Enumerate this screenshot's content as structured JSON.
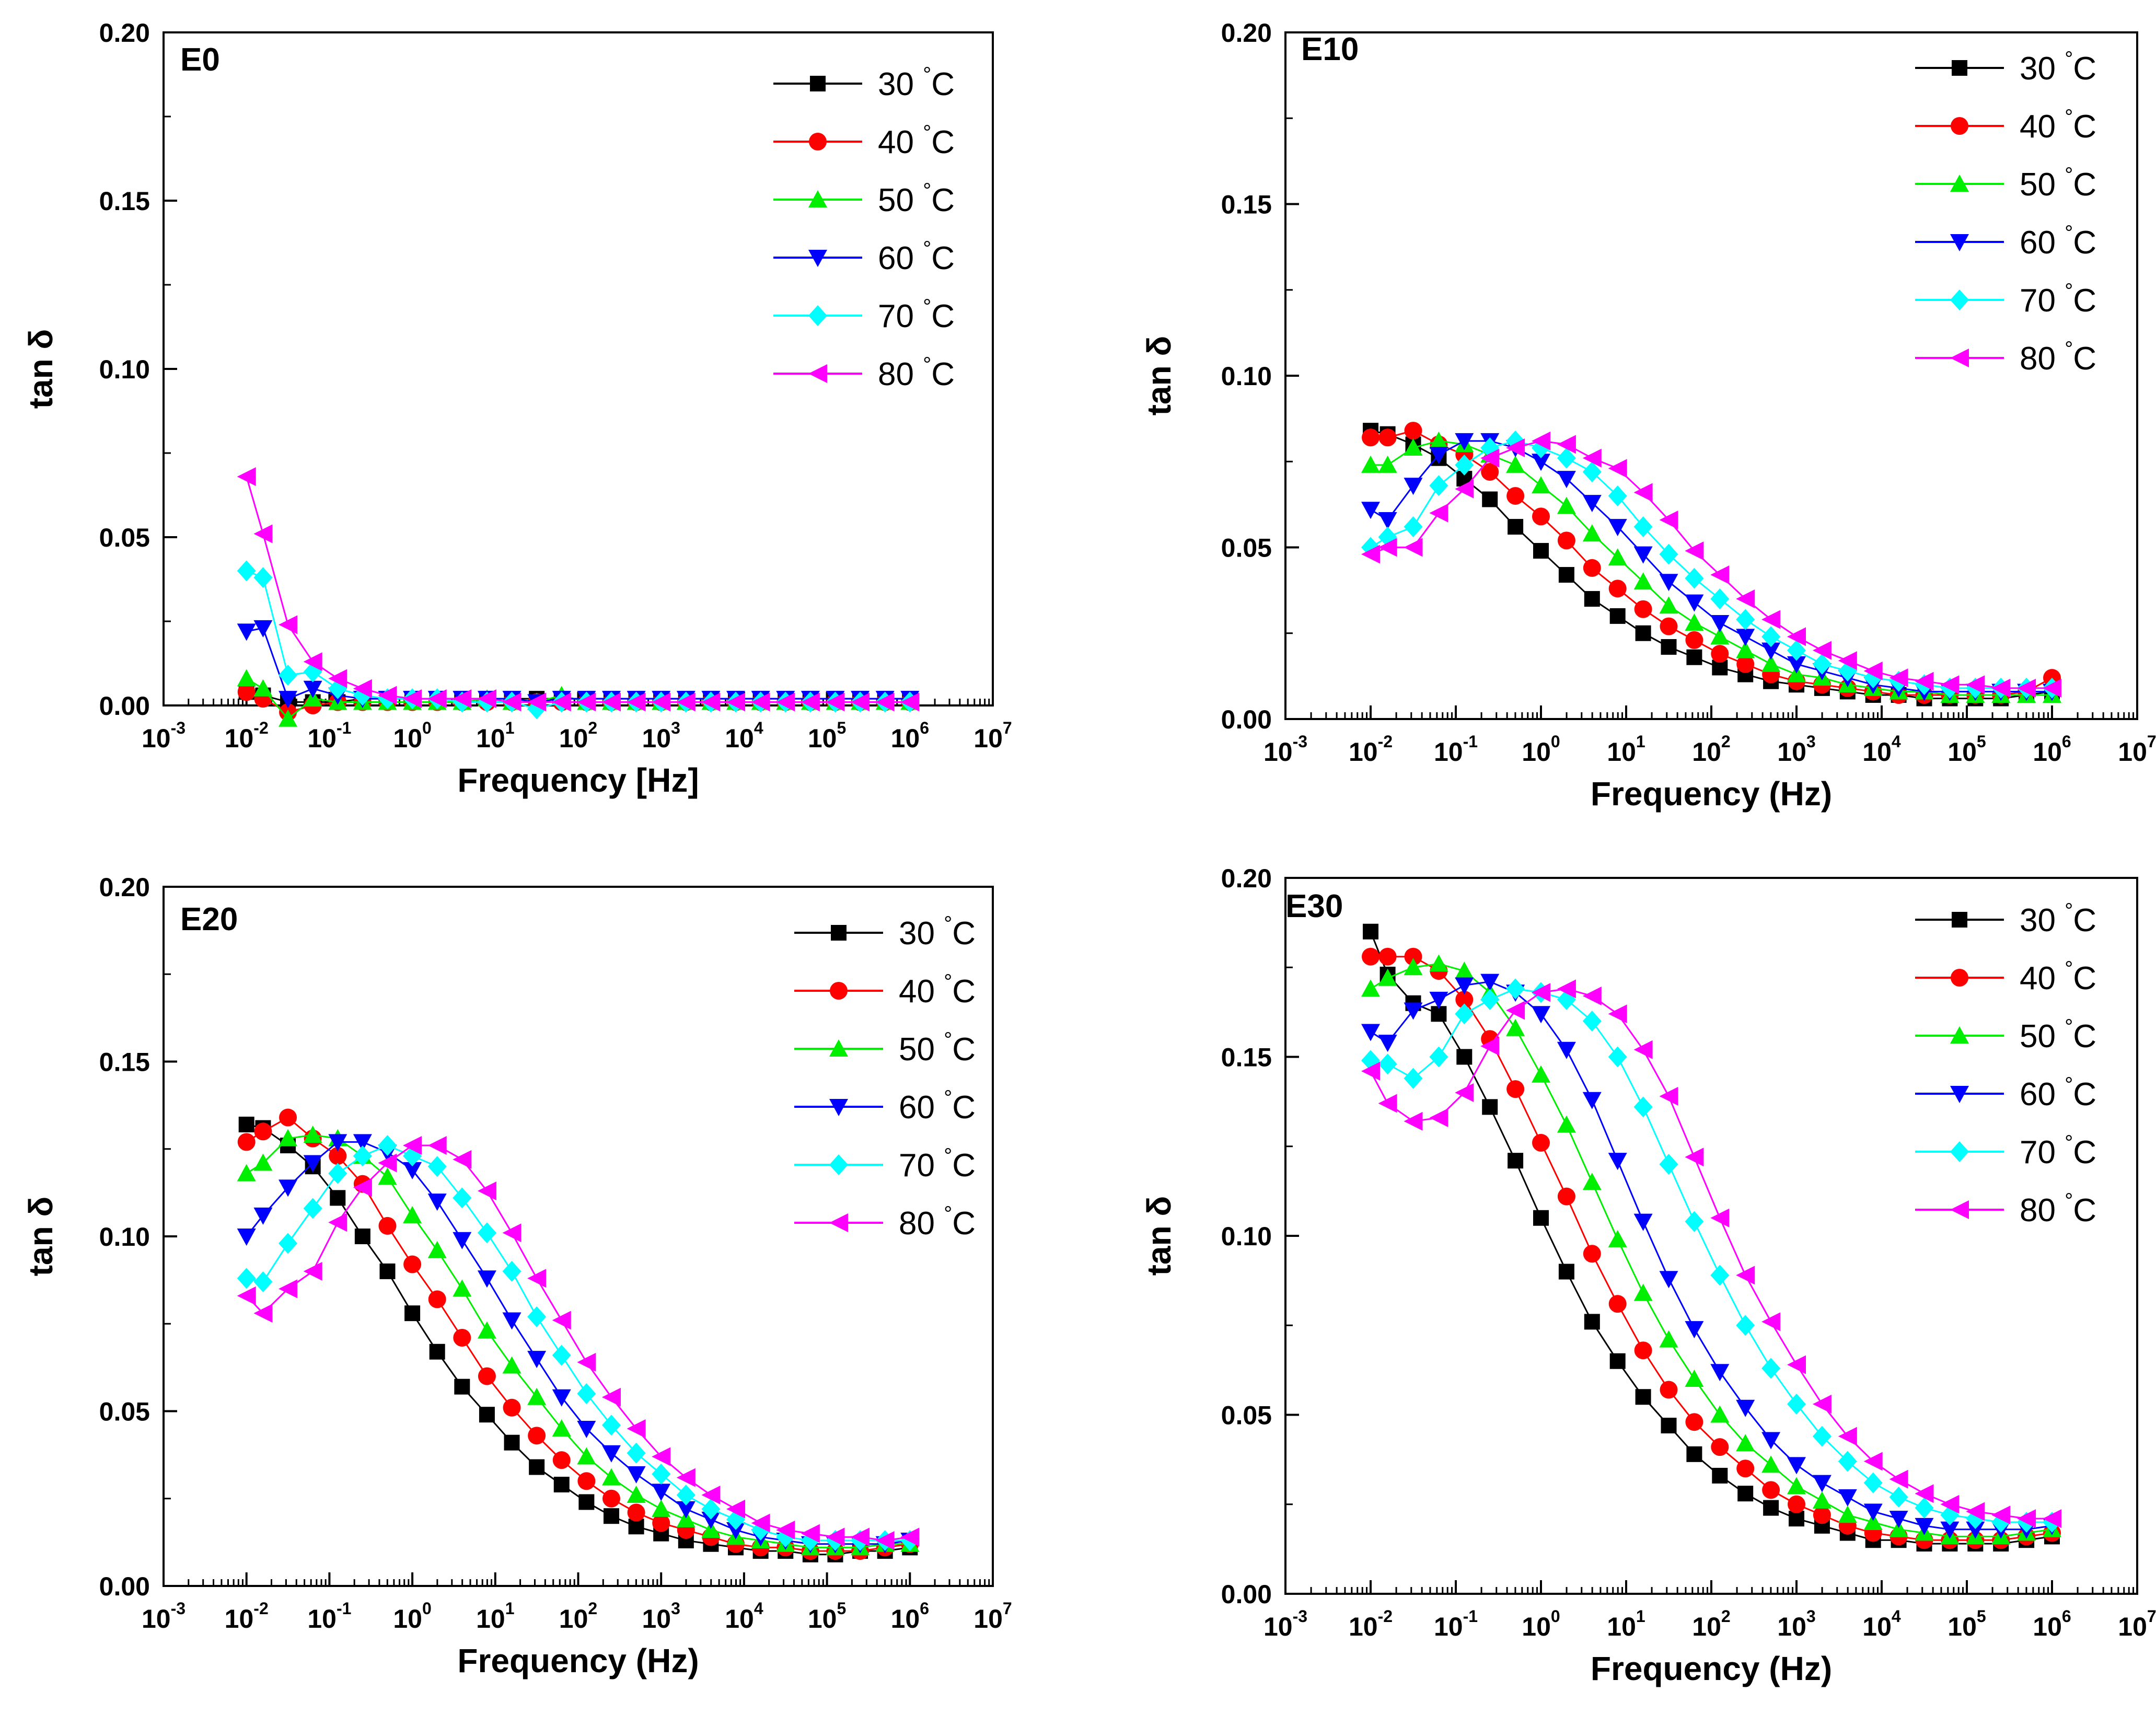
{
  "colors": {
    "30 °C": "#000000",
    "40 °C": "#ff0000",
    "50 °C": "#00ee00",
    "60 °C": "#0000ff",
    "70 °C": "#00ffff",
    "80 °C": "#ff00ff"
  },
  "markers": {
    "30 °C": "square",
    "40 °C": "circle",
    "50 °C": "triangle-up",
    "60 °C": "triangle-down",
    "70 °C": "diamond",
    "80 °C": "triangle-left"
  },
  "chart_data": [
    {
      "type": "line",
      "title": "E0",
      "xlabel": "Frequency [Hz]",
      "ylabel": "tan δ",
      "xscale": "log",
      "xlim_exp": [
        -3,
        7
      ],
      "xtick_exps": [
        -3,
        -2,
        -1,
        0,
        1,
        2,
        3,
        4,
        5,
        6,
        7
      ],
      "ylim": [
        0,
        0.2
      ],
      "yticks": [
        "0.00",
        "0.05",
        "0.10",
        "0.15",
        "0.20"
      ],
      "legend_position": "top-right",
      "x_log10": [
        -2,
        -1.8,
        -1.5,
        -1.2,
        -0.9,
        -0.6,
        -0.3,
        0,
        0.3,
        0.6,
        0.9,
        1.2,
        1.5,
        1.8,
        2.1,
        2.4,
        2.7,
        3,
        3.3,
        3.6,
        3.9,
        4.2,
        4.5,
        4.8,
        5.1,
        5.4,
        5.7,
        6
      ],
      "series": [
        {
          "name": "30 °C",
          "values": [
            0.004,
            0.003,
            0.001,
            0.001,
            0.001,
            0.002,
            0.002,
            0.002,
            0.002,
            0.002,
            0.002,
            0.002,
            0.002,
            0.002,
            0.002,
            0.002,
            0.002,
            0.002,
            0.002,
            0.002,
            0.002,
            0.002,
            0.002,
            0.002,
            0.002,
            0.002,
            0.002,
            0.002
          ]
        },
        {
          "name": "40 °C",
          "values": [
            0.004,
            0.002,
            -0.002,
            0.0,
            0.001,
            0.001,
            0.001,
            0.001,
            0.001,
            0.001,
            0.001,
            0.001,
            0.001,
            0.001,
            0.001,
            0.001,
            0.001,
            0.001,
            0.001,
            0.001,
            0.001,
            0.001,
            0.001,
            0.001,
            0.001,
            0.001,
            0.001,
            0.001
          ]
        },
        {
          "name": "50 °C",
          "values": [
            0.008,
            0.005,
            -0.004,
            0.002,
            0.001,
            0.001,
            0.001,
            0.001,
            0.001,
            0.001,
            0.002,
            0.001,
            0.001,
            0.003,
            0.001,
            0.001,
            0.001,
            0.001,
            0.001,
            0.001,
            0.001,
            0.001,
            0.001,
            0.001,
            0.001,
            0.001,
            0.001,
            0.001
          ]
        },
        {
          "name": "60 °C",
          "values": [
            0.022,
            0.023,
            0.002,
            0.005,
            0.003,
            0.002,
            0.002,
            0.002,
            0.002,
            0.002,
            0.002,
            0.002,
            0.001,
            0.002,
            0.002,
            0.002,
            0.002,
            0.002,
            0.002,
            0.002,
            0.002,
            0.002,
            0.002,
            0.002,
            0.002,
            0.002,
            0.002,
            0.002
          ]
        },
        {
          "name": "70 °C",
          "values": [
            0.04,
            0.038,
            0.009,
            0.01,
            0.005,
            0.003,
            0.002,
            0.002,
            0.002,
            0.001,
            0.001,
            0.001,
            -0.001,
            0.001,
            0.001,
            0.001,
            0.001,
            0.001,
            0.001,
            0.001,
            0.001,
            0.001,
            0.001,
            0.001,
            0.001,
            0.001,
            0.001,
            0.001
          ]
        },
        {
          "name": "80 °C",
          "values": [
            0.068,
            0.051,
            0.024,
            0.013,
            0.008,
            0.005,
            0.003,
            0.002,
            0.002,
            0.002,
            0.002,
            0.001,
            0.001,
            0.001,
            0.001,
            0.001,
            0.001,
            0.001,
            0.001,
            0.001,
            0.001,
            0.001,
            0.001,
            0.001,
            0.001,
            0.001,
            0.001,
            0.001
          ]
        }
      ]
    },
    {
      "type": "line",
      "title": "E10",
      "xlabel": "Frequency (Hz)",
      "ylabel": "tan δ",
      "xscale": "log",
      "xlim_exp": [
        -3,
        7
      ],
      "xtick_exps": [
        -3,
        -2,
        -1,
        0,
        1,
        2,
        3,
        4,
        5,
        6,
        7
      ],
      "ylim": [
        0,
        0.2
      ],
      "yticks": [
        "0.00",
        "0.05",
        "0.10",
        "0.15",
        "0.20"
      ],
      "legend_position": "top-right",
      "x_log10": [
        -2,
        -1.8,
        -1.5,
        -1.2,
        -0.9,
        -0.6,
        -0.3,
        0,
        0.3,
        0.6,
        0.9,
        1.2,
        1.5,
        1.8,
        2.1,
        2.4,
        2.7,
        3,
        3.3,
        3.6,
        3.9,
        4.2,
        4.5,
        4.8,
        5.1,
        5.4,
        5.7,
        6
      ],
      "series": [
        {
          "name": "30 °C",
          "values": [
            0.084,
            0.083,
            0.08,
            0.076,
            0.07,
            0.064,
            0.056,
            0.049,
            0.042,
            0.035,
            0.03,
            0.025,
            0.021,
            0.018,
            0.015,
            0.013,
            0.011,
            0.01,
            0.009,
            0.008,
            0.007,
            0.007,
            0.006,
            0.006,
            0.006,
            0.006,
            0.007,
            0.008
          ]
        },
        {
          "name": "40 °C",
          "values": [
            0.082,
            0.082,
            0.084,
            0.08,
            0.077,
            0.072,
            0.065,
            0.059,
            0.052,
            0.044,
            0.038,
            0.032,
            0.027,
            0.023,
            0.019,
            0.016,
            0.013,
            0.011,
            0.01,
            0.009,
            0.008,
            0.007,
            0.007,
            0.007,
            0.007,
            0.007,
            0.008,
            0.012
          ]
        },
        {
          "name": "50 °C",
          "values": [
            0.074,
            0.074,
            0.079,
            0.081,
            0.08,
            0.077,
            0.074,
            0.068,
            0.062,
            0.054,
            0.047,
            0.04,
            0.033,
            0.028,
            0.024,
            0.02,
            0.016,
            0.013,
            0.012,
            0.01,
            0.009,
            0.008,
            0.008,
            0.007,
            0.007,
            0.007,
            0.007,
            0.007
          ]
        },
        {
          "name": "60 °C",
          "values": [
            0.061,
            0.058,
            0.068,
            0.077,
            0.081,
            0.081,
            0.079,
            0.075,
            0.07,
            0.063,
            0.056,
            0.048,
            0.04,
            0.034,
            0.028,
            0.024,
            0.02,
            0.016,
            0.014,
            0.012,
            0.01,
            0.009,
            0.008,
            0.008,
            0.008,
            0.008,
            0.008,
            0.008
          ]
        },
        {
          "name": "70 °C",
          "values": [
            0.05,
            0.053,
            0.056,
            0.068,
            0.074,
            0.079,
            0.081,
            0.079,
            0.076,
            0.072,
            0.065,
            0.056,
            0.048,
            0.041,
            0.035,
            0.029,
            0.024,
            0.02,
            0.016,
            0.014,
            0.012,
            0.011,
            0.01,
            0.009,
            0.009,
            0.009,
            0.009,
            0.009
          ]
        },
        {
          "name": "80 °C",
          "values": [
            0.048,
            0.05,
            0.05,
            0.06,
            0.067,
            0.076,
            0.079,
            0.081,
            0.08,
            0.076,
            0.073,
            0.066,
            0.058,
            0.049,
            0.042,
            0.035,
            0.029,
            0.024,
            0.02,
            0.017,
            0.014,
            0.012,
            0.011,
            0.01,
            0.01,
            0.009,
            0.009,
            0.009
          ]
        }
      ]
    },
    {
      "type": "line",
      "title": "E20",
      "xlabel": "Frequency (Hz)",
      "ylabel": "tan δ",
      "xscale": "log",
      "xlim_exp": [
        -3,
        7
      ],
      "xtick_exps": [
        -3,
        -2,
        -1,
        0,
        1,
        2,
        3,
        4,
        5,
        6,
        7
      ],
      "ylim": [
        0,
        0.2
      ],
      "yticks": [
        "0.00",
        "0.05",
        "0.10",
        "0.15",
        "0.20"
      ],
      "legend_position": "top-right",
      "x_log10": [
        -2,
        -1.8,
        -1.5,
        -1.2,
        -0.9,
        -0.6,
        -0.3,
        0,
        0.3,
        0.6,
        0.9,
        1.2,
        1.5,
        1.8,
        2.1,
        2.4,
        2.7,
        3,
        3.3,
        3.6,
        3.9,
        4.2,
        4.5,
        4.8,
        5.1,
        5.4,
        5.7,
        6
      ],
      "series": [
        {
          "name": "30 °C",
          "values": [
            0.132,
            0.131,
            0.126,
            0.12,
            0.111,
            0.1,
            0.09,
            0.078,
            0.067,
            0.057,
            0.049,
            0.041,
            0.034,
            0.029,
            0.024,
            0.02,
            0.017,
            0.015,
            0.013,
            0.012,
            0.011,
            0.01,
            0.01,
            0.009,
            0.009,
            0.01,
            0.01,
            0.011
          ]
        },
        {
          "name": "40 °C",
          "values": [
            0.127,
            0.13,
            0.134,
            0.128,
            0.123,
            0.115,
            0.103,
            0.092,
            0.082,
            0.071,
            0.06,
            0.051,
            0.043,
            0.036,
            0.03,
            0.025,
            0.021,
            0.018,
            0.016,
            0.014,
            0.012,
            0.011,
            0.011,
            0.01,
            0.01,
            0.01,
            0.011,
            0.012
          ]
        },
        {
          "name": "50 °C",
          "values": [
            0.118,
            0.121,
            0.128,
            0.129,
            0.128,
            0.123,
            0.117,
            0.106,
            0.096,
            0.085,
            0.073,
            0.063,
            0.054,
            0.045,
            0.037,
            0.031,
            0.026,
            0.022,
            0.019,
            0.016,
            0.014,
            0.013,
            0.012,
            0.011,
            0.011,
            0.011,
            0.012,
            0.012
          ]
        },
        {
          "name": "60 °C",
          "values": [
            0.1,
            0.106,
            0.114,
            0.121,
            0.127,
            0.127,
            0.124,
            0.119,
            0.11,
            0.099,
            0.088,
            0.076,
            0.065,
            0.054,
            0.045,
            0.038,
            0.032,
            0.027,
            0.022,
            0.019,
            0.016,
            0.014,
            0.013,
            0.012,
            0.012,
            0.012,
            0.012,
            0.013
          ]
        },
        {
          "name": "70 °C",
          "values": [
            0.088,
            0.087,
            0.098,
            0.108,
            0.118,
            0.123,
            0.126,
            0.123,
            0.12,
            0.111,
            0.101,
            0.09,
            0.077,
            0.066,
            0.055,
            0.046,
            0.038,
            0.032,
            0.026,
            0.022,
            0.019,
            0.016,
            0.014,
            0.013,
            0.013,
            0.013,
            0.013,
            0.013
          ]
        },
        {
          "name": "80 °C",
          "values": [
            0.083,
            0.078,
            0.085,
            0.09,
            0.104,
            0.114,
            0.121,
            0.126,
            0.126,
            0.122,
            0.113,
            0.101,
            0.088,
            0.076,
            0.064,
            0.054,
            0.045,
            0.037,
            0.031,
            0.026,
            0.022,
            0.018,
            0.016,
            0.015,
            0.014,
            0.014,
            0.013,
            0.014
          ]
        }
      ]
    },
    {
      "type": "line",
      "title": "E30",
      "xlabel": "Frequency (Hz)",
      "ylabel": "tan δ",
      "xscale": "log",
      "xlim_exp": [
        -3,
        7
      ],
      "xtick_exps": [
        -3,
        -2,
        -1,
        0,
        1,
        2,
        3,
        4,
        5,
        6,
        7
      ],
      "ylim": [
        0,
        0.2
      ],
      "yticks": [
        "0.00",
        "0.05",
        "0.10",
        "0.15",
        "0.20"
      ],
      "legend_position": "top-right",
      "x_log10": [
        -2,
        -1.8,
        -1.5,
        -1.2,
        -0.9,
        -0.6,
        -0.3,
        0,
        0.3,
        0.6,
        0.9,
        1.2,
        1.5,
        1.8,
        2.1,
        2.4,
        2.7,
        3,
        3.3,
        3.6,
        3.9,
        4.2,
        4.5,
        4.8,
        5.1,
        5.4,
        5.7,
        6
      ],
      "series": [
        {
          "name": "30 °C",
          "values": [
            0.185,
            0.173,
            0.165,
            0.162,
            0.15,
            0.136,
            0.121,
            0.105,
            0.09,
            0.076,
            0.065,
            0.055,
            0.047,
            0.039,
            0.033,
            0.028,
            0.024,
            0.021,
            0.019,
            0.017,
            0.015,
            0.015,
            0.014,
            0.014,
            0.014,
            0.014,
            0.015,
            0.016
          ]
        },
        {
          "name": "40 °C",
          "values": [
            0.178,
            0.178,
            0.178,
            0.174,
            0.166,
            0.155,
            0.141,
            0.126,
            0.111,
            0.095,
            0.081,
            0.068,
            0.057,
            0.048,
            0.041,
            0.035,
            0.029,
            0.025,
            0.022,
            0.019,
            0.017,
            0.016,
            0.015,
            0.015,
            0.015,
            0.015,
            0.016,
            0.017
          ]
        },
        {
          "name": "50 °C",
          "values": [
            0.169,
            0.172,
            0.175,
            0.176,
            0.174,
            0.168,
            0.158,
            0.145,
            0.131,
            0.115,
            0.099,
            0.084,
            0.071,
            0.06,
            0.05,
            0.042,
            0.036,
            0.03,
            0.026,
            0.022,
            0.02,
            0.018,
            0.017,
            0.016,
            0.016,
            0.016,
            0.017,
            0.018
          ]
        },
        {
          "name": "60 °C",
          "values": [
            0.157,
            0.154,
            0.163,
            0.166,
            0.17,
            0.171,
            0.168,
            0.162,
            0.152,
            0.138,
            0.121,
            0.104,
            0.088,
            0.074,
            0.062,
            0.052,
            0.043,
            0.036,
            0.031,
            0.027,
            0.023,
            0.021,
            0.019,
            0.018,
            0.018,
            0.018,
            0.018,
            0.019
          ]
        },
        {
          "name": "70 °C",
          "values": [
            0.149,
            0.148,
            0.144,
            0.15,
            0.162,
            0.166,
            0.169,
            0.168,
            0.166,
            0.16,
            0.15,
            0.136,
            0.12,
            0.104,
            0.089,
            0.075,
            0.063,
            0.053,
            0.044,
            0.037,
            0.031,
            0.027,
            0.024,
            0.022,
            0.021,
            0.02,
            0.02,
            0.02
          ]
        },
        {
          "name": "80 °C",
          "values": [
            0.146,
            0.137,
            0.132,
            0.133,
            0.14,
            0.153,
            0.163,
            0.168,
            0.169,
            0.167,
            0.162,
            0.152,
            0.139,
            0.122,
            0.105,
            0.089,
            0.076,
            0.064,
            0.053,
            0.044,
            0.037,
            0.032,
            0.028,
            0.025,
            0.023,
            0.022,
            0.021,
            0.021
          ]
        }
      ]
    }
  ]
}
